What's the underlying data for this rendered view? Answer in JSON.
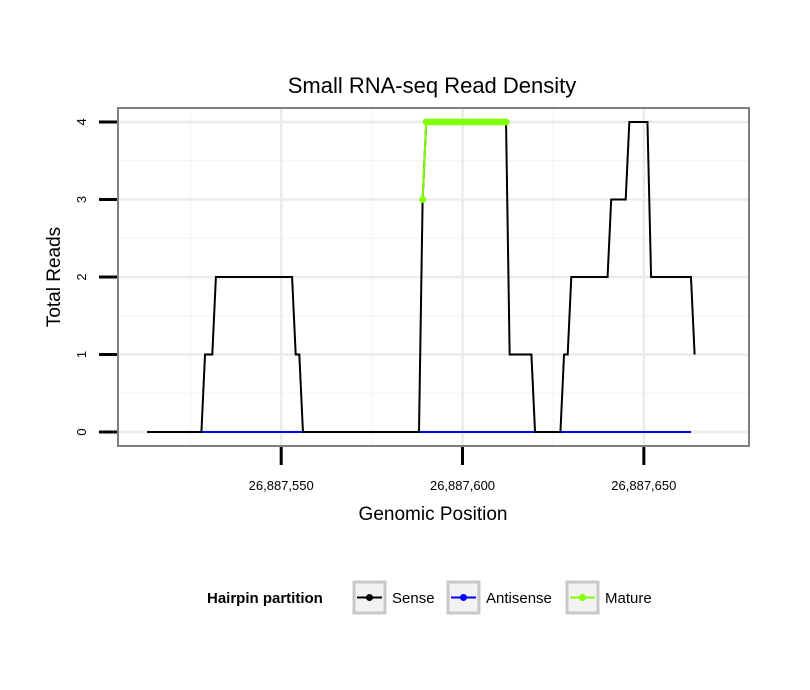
{
  "chart_data": {
    "type": "line",
    "title": "Small RNA-seq Read Density",
    "xlabel": "Genomic Position",
    "ylabel": "Total Reads",
    "xlim": [
      26887505,
      26887679
    ],
    "ylim": [
      -0.18,
      4.18
    ],
    "x_ticks": [
      {
        "value": 26887550,
        "label": "26,887,550"
      },
      {
        "value": 26887600,
        "label": "26,887,600"
      },
      {
        "value": 26887650,
        "label": "26,887,650"
      }
    ],
    "y_ticks": [
      {
        "value": 0,
        "label": "0"
      },
      {
        "value": 1,
        "label": "1"
      },
      {
        "value": 2,
        "label": "2"
      },
      {
        "value": 3,
        "label": "3"
      },
      {
        "value": 4,
        "label": "4"
      }
    ],
    "grid": true,
    "legend": {
      "title": "Hairpin partition",
      "position": "bottom",
      "entries": [
        {
          "label": "Sense",
          "color": "#000000"
        },
        {
          "label": "Antisense",
          "color": "#0000ff"
        },
        {
          "label": "Mature",
          "color": "#7fff00"
        }
      ]
    },
    "series": [
      {
        "name": "Sense",
        "color": "#000000",
        "points": [
          [
            26887513,
            0
          ],
          [
            26887528,
            0
          ],
          [
            26887529,
            1
          ],
          [
            26887531,
            1
          ],
          [
            26887532,
            2
          ],
          [
            26887553,
            2
          ],
          [
            26887554,
            1
          ],
          [
            26887555,
            1
          ],
          [
            26887556,
            0
          ],
          [
            26887588,
            0
          ],
          [
            26887589,
            3
          ],
          [
            26887590,
            4
          ],
          [
            26887612,
            4
          ],
          [
            26887613,
            1
          ],
          [
            26887619,
            1
          ],
          [
            26887620,
            0
          ],
          [
            26887627,
            0
          ],
          [
            26887628,
            1
          ],
          [
            26887629,
            1
          ],
          [
            26887630,
            2
          ],
          [
            26887640,
            2
          ],
          [
            26887641,
            3
          ],
          [
            26887645,
            3
          ],
          [
            26887646,
            4
          ],
          [
            26887651,
            4
          ],
          [
            26887652,
            2
          ],
          [
            26887663,
            2
          ],
          [
            26887664,
            1
          ]
        ]
      },
      {
        "name": "Antisense",
        "color": "#0000ff",
        "points": [
          [
            26887528,
            0
          ],
          [
            26887663,
            0
          ]
        ]
      },
      {
        "name": "Mature",
        "color": "#7fff00",
        "points": [
          [
            26887589,
            3
          ],
          [
            26887590,
            4
          ],
          [
            26887591,
            4
          ],
          [
            26887592,
            4
          ],
          [
            26887593,
            4
          ],
          [
            26887594,
            4
          ],
          [
            26887595,
            4
          ],
          [
            26887596,
            4
          ],
          [
            26887597,
            4
          ],
          [
            26887598,
            4
          ],
          [
            26887599,
            4
          ],
          [
            26887600,
            4
          ],
          [
            26887601,
            4
          ],
          [
            26887602,
            4
          ],
          [
            26887603,
            4
          ],
          [
            26887604,
            4
          ],
          [
            26887605,
            4
          ],
          [
            26887606,
            4
          ],
          [
            26887607,
            4
          ],
          [
            26887608,
            4
          ],
          [
            26887609,
            4
          ],
          [
            26887610,
            4
          ],
          [
            26887611,
            4
          ],
          [
            26887612,
            4
          ]
        ]
      }
    ]
  }
}
